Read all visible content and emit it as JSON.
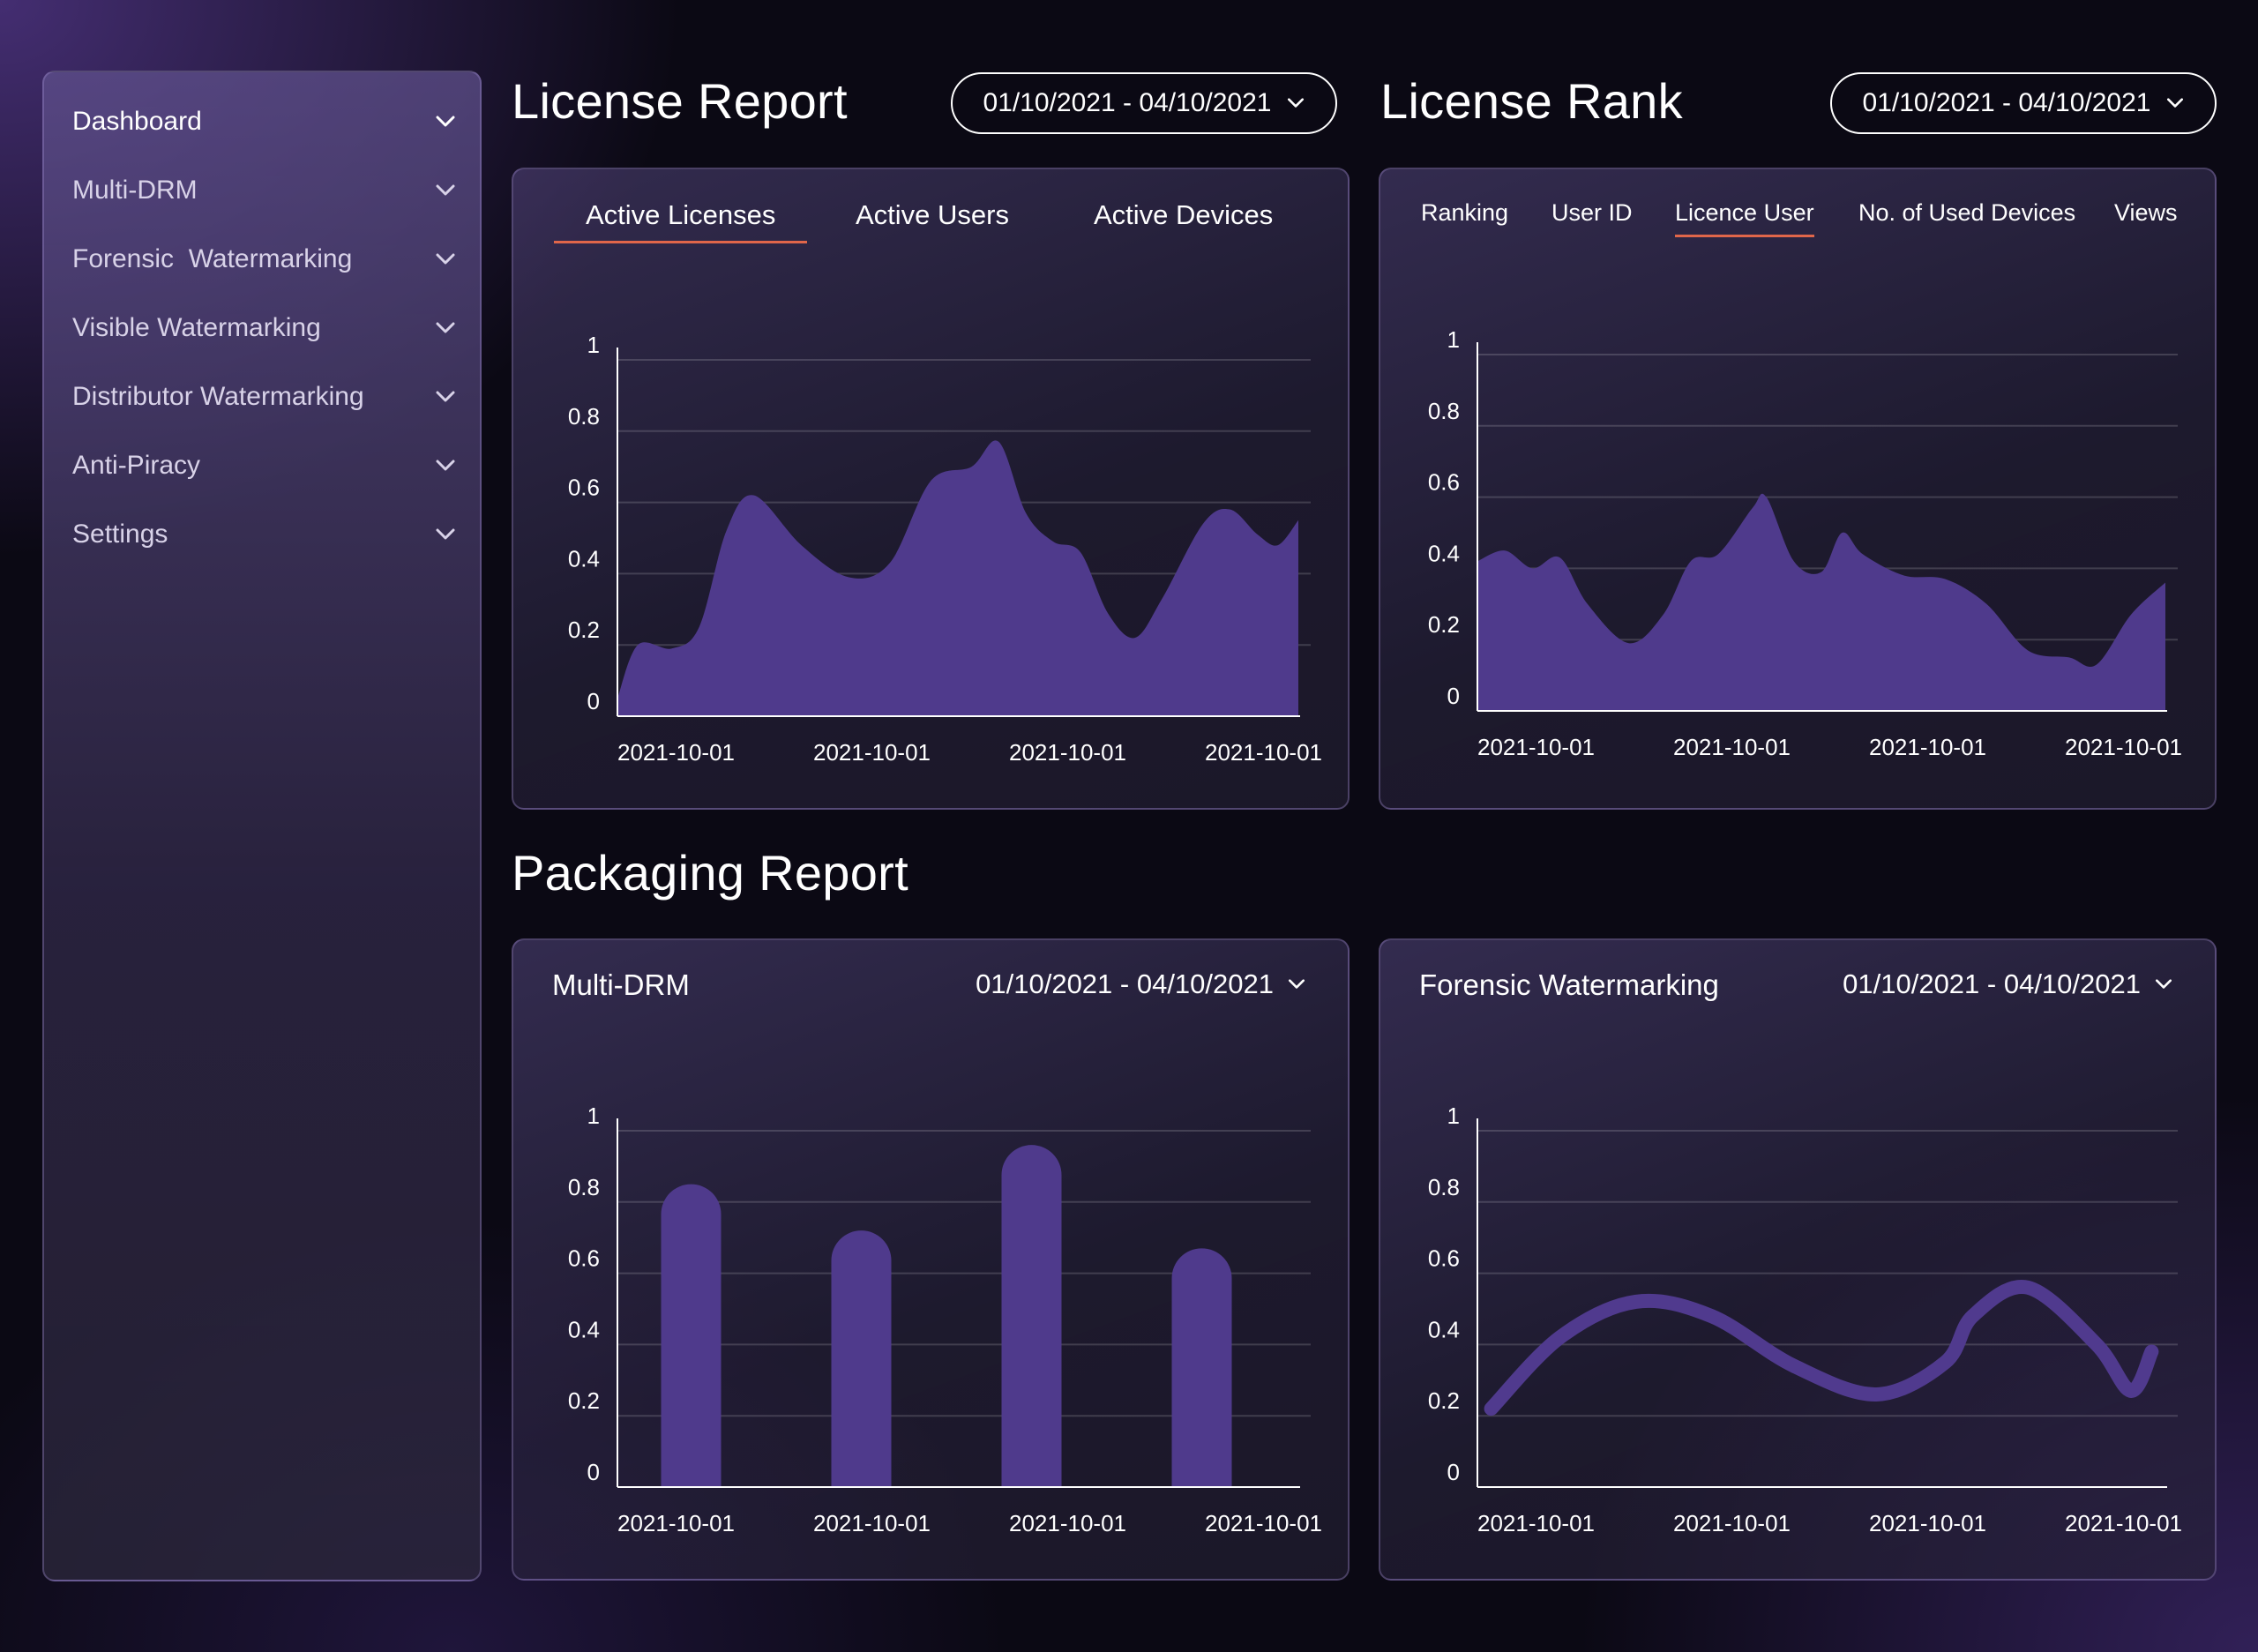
{
  "sidebar": {
    "items": [
      {
        "label": "Dashboard",
        "active": true
      },
      {
        "label": "Multi-DRM"
      },
      {
        "label": "Forensic  Watermarking"
      },
      {
        "label": "Visible Watermarking"
      },
      {
        "label": "Distributor Watermarking"
      },
      {
        "label": "Anti-Piracy"
      },
      {
        "label": "Settings"
      }
    ]
  },
  "license_report": {
    "title": "License Report",
    "date_range": "01/10/2021 - 04/10/2021",
    "tabs": [
      "Active Licenses",
      "Active Users",
      "Active Devices"
    ],
    "active_tab": "Active Licenses"
  },
  "license_rank": {
    "title": "License Rank",
    "date_range": "01/10/2021 - 04/10/2021",
    "tabs": [
      "Ranking",
      "User ID",
      "Licence User",
      "No. of Used Devices",
      "Views"
    ],
    "active_tab": "Licence User"
  },
  "packaging_report": {
    "title": "Packaging Report",
    "multi_drm": {
      "title": "Multi-DRM",
      "date_range": "01/10/2021 - 04/10/2021"
    },
    "forensic": {
      "title": "Forensic Watermarking",
      "date_range": "01/10/2021 - 04/10/2021"
    }
  },
  "colors": {
    "series": "#4f3a8c",
    "line": "#503a8e",
    "tab_underline": "#e0664a",
    "axis": "#ffffff",
    "grid": "rgba(255,255,255,0.16)"
  },
  "chart_data": [
    {
      "id": "license_report_chart",
      "type": "area",
      "ylim": [
        0,
        1
      ],
      "y_ticks": [
        "0",
        "0.2",
        "0.4",
        "0.6",
        "0.8",
        "1"
      ],
      "x_ticks": [
        "2021-10-01",
        "2021-10-01",
        "2021-10-01",
        "2021-10-01"
      ],
      "grid": true,
      "x": [
        0,
        0.03,
        0.08,
        0.12,
        0.16,
        0.2,
        0.27,
        0.34,
        0.4,
        0.46,
        0.52,
        0.56,
        0.6,
        0.64,
        0.68,
        0.72,
        0.76,
        0.8,
        0.86,
        0.9,
        0.94,
        0.97,
        1
      ],
      "values": [
        0.05,
        0.2,
        0.19,
        0.25,
        0.52,
        0.62,
        0.48,
        0.39,
        0.43,
        0.66,
        0.7,
        0.77,
        0.57,
        0.49,
        0.46,
        0.29,
        0.22,
        0.33,
        0.54,
        0.58,
        0.51,
        0.48,
        0.55
      ]
    },
    {
      "id": "license_rank_chart",
      "type": "area",
      "ylim": [
        0,
        1
      ],
      "y_ticks": [
        "0",
        "0.2",
        "0.4",
        "0.6",
        "0.8",
        "1"
      ],
      "x_ticks": [
        "2021-10-01",
        "2021-10-01",
        "2021-10-01",
        "2021-10-01"
      ],
      "grid": true,
      "x": [
        0,
        0.04,
        0.08,
        0.12,
        0.16,
        0.22,
        0.27,
        0.31,
        0.35,
        0.4,
        0.42,
        0.46,
        0.5,
        0.53,
        0.56,
        0.62,
        0.68,
        0.74,
        0.8,
        0.86,
        0.9,
        0.95,
        1
      ],
      "values": [
        0.42,
        0.45,
        0.4,
        0.43,
        0.3,
        0.19,
        0.27,
        0.42,
        0.44,
        0.57,
        0.6,
        0.42,
        0.39,
        0.5,
        0.44,
        0.38,
        0.37,
        0.3,
        0.17,
        0.15,
        0.13,
        0.27,
        0.36
      ]
    },
    {
      "id": "multi_drm_chart",
      "type": "bar",
      "ylim": [
        0,
        1
      ],
      "y_ticks": [
        "0",
        "0.2",
        "0.4",
        "0.6",
        "0.8",
        "1"
      ],
      "categories": [
        "2021-10-01",
        "2021-10-01",
        "2021-10-01",
        "2021-10-01"
      ],
      "values": [
        0.85,
        0.72,
        0.96,
        0.67
      ],
      "grid": true
    },
    {
      "id": "forensic_chart",
      "type": "line",
      "ylim": [
        0,
        1
      ],
      "y_ticks": [
        "0",
        "0.2",
        "0.4",
        "0.6",
        "0.8",
        "1"
      ],
      "x_ticks": [
        "2021-10-01",
        "2021-10-01",
        "2021-10-01",
        "2021-10-01"
      ],
      "grid": true,
      "x": [
        0.02,
        0.12,
        0.23,
        0.34,
        0.46,
        0.58,
        0.68,
        0.72,
        0.8,
        0.9,
        0.95,
        0.98
      ],
      "values": [
        0.22,
        0.42,
        0.52,
        0.48,
        0.34,
        0.26,
        0.35,
        0.48,
        0.56,
        0.4,
        0.27,
        0.38
      ]
    }
  ]
}
